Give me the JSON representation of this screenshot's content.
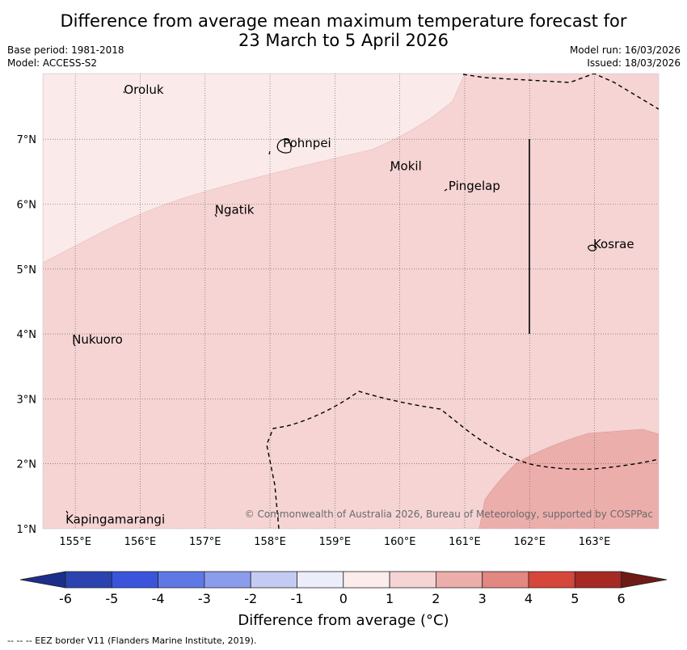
{
  "header": {
    "title_line1": "Difference from average mean maximum temperature forecast for",
    "title_line2": "23 March to 5 April 2026",
    "base_period": "Base period: 1981-2018",
    "model": "Model: ACCESS-S2",
    "model_run": "Model run: 16/03/2026",
    "issued": "Issued: 18/03/2026"
  },
  "map": {
    "lat_labels": [
      "7°N",
      "6°N",
      "5°N",
      "4°N",
      "3°N",
      "2°N",
      "1°N"
    ],
    "lon_labels": [
      "155°E",
      "156°E",
      "157°E",
      "158°E",
      "159°E",
      "160°E",
      "161°E",
      "162°E",
      "163°E"
    ],
    "places": [
      {
        "name": "Oroluk",
        "lon": 155.75,
        "lat": 7.7
      },
      {
        "name": "Pohnpei",
        "lon": 158.2,
        "lat": 6.88
      },
      {
        "name": "Mokil",
        "lon": 159.85,
        "lat": 6.52
      },
      {
        "name": "Pingelap",
        "lon": 160.75,
        "lat": 6.22
      },
      {
        "name": "Ngatik",
        "lon": 157.15,
        "lat": 5.85
      },
      {
        "name": "Kosrae",
        "lon": 162.98,
        "lat": 5.32
      },
      {
        "name": "Nukuoro",
        "lon": 154.95,
        "lat": 3.85
      },
      {
        "name": "Kapingamarangi",
        "lon": 154.85,
        "lat": 1.08
      }
    ],
    "copyright": "© Commonwealth of Australia 2026, Bureau of Meteorology, supported by COSPPac"
  },
  "legend": {
    "title": "Difference from average (°C)",
    "ticks": [
      "-6",
      "-5",
      "-4",
      "-3",
      "-2",
      "-1",
      "0",
      "1",
      "2",
      "3",
      "4",
      "5",
      "6"
    ],
    "colors": [
      "#1c2e8a",
      "#2b43b0",
      "#3a55dc",
      "#6078e6",
      "#8c9ced",
      "#c4cbf3",
      "#ecedfb",
      "#fdecec",
      "#f5d4d3",
      "#ecaeab",
      "#e38781",
      "#d6463b",
      "#a62924",
      "#6e1a17"
    ]
  },
  "footer": "--  --  -- EEZ border V11 (Flanders Marine Institute, 2019)."
}
